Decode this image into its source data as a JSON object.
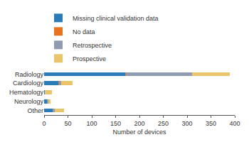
{
  "chart_data": {
    "type": "bar",
    "orientation": "horizontal",
    "stacked": true,
    "x_label": "Number of devices",
    "categories": [
      "Radiology",
      "Cardiology",
      "Hematology",
      "Neurology",
      "Other"
    ],
    "series": [
      {
        "name": "Missing clinical validation data",
        "color": "#2b7bb9",
        "values": [
          170,
          30,
          2,
          6,
          18
        ]
      },
      {
        "name": "No data",
        "color": "#e8731f",
        "values": [
          2,
          1,
          0,
          0,
          0
        ]
      },
      {
        "name": "Retrospective",
        "color": "#8e9bb1",
        "values": [
          138,
          5,
          0,
          3,
          4
        ]
      },
      {
        "name": "Prospective",
        "color": "#e9c46a",
        "values": [
          80,
          24,
          14,
          5,
          20
        ]
      }
    ],
    "xlim": [
      0,
      400
    ],
    "xticks": [
      0,
      50,
      100,
      150,
      200,
      250,
      300,
      350,
      400
    ],
    "grid": false,
    "legend": "top"
  }
}
